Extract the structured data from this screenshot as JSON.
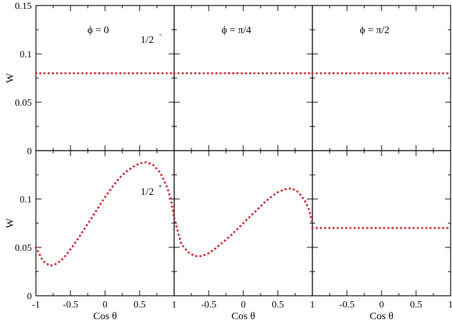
{
  "chart_data": {
    "type": "line",
    "grid": false,
    "line_color": "#e8141b",
    "line_style": "dotted",
    "xlabel": "Cos θ",
    "ylabel": "W",
    "x_ticks": [
      "-1",
      "-0.5",
      "0",
      "0.5",
      "1"
    ],
    "x_ticks_joined": [
      "1",
      "-0.5",
      "0",
      "0.5",
      "1"
    ],
    "y_ticks_top": [
      "0",
      "0.05",
      "0.1",
      "0.15"
    ],
    "y_ticks_bottom": [
      "0",
      "0.05",
      "0.1"
    ],
    "xlim": [
      -1,
      1
    ],
    "ylim": [
      0,
      0.15
    ],
    "columns": [
      {
        "label": "ϕ = 0"
      },
      {
        "label": "ϕ = π/4"
      },
      {
        "label": "ϕ = π/2"
      }
    ],
    "row_annotations": [
      {
        "row": 0,
        "col": 0,
        "base": "1/2",
        "sup": "-"
      },
      {
        "row": 1,
        "col": 0,
        "base": "1/2",
        "sup": "+"
      }
    ],
    "panels": [
      {
        "row": 0,
        "col": 0,
        "x": [
          -1,
          1
        ],
        "y": [
          0.08,
          0.08
        ]
      },
      {
        "row": 0,
        "col": 1,
        "x": [
          -1,
          1
        ],
        "y": [
          0.08,
          0.08
        ]
      },
      {
        "row": 0,
        "col": 2,
        "x": [
          -1,
          1
        ],
        "y": [
          0.08,
          0.08
        ]
      },
      {
        "row": 1,
        "col": 0,
        "x": [
          -1,
          -0.9,
          -0.8,
          -0.7,
          -0.6,
          -0.5,
          -0.4,
          -0.3,
          -0.2,
          -0.1,
          0,
          0.1,
          0.2,
          0.3,
          0.4,
          0.5,
          0.6,
          0.7,
          0.8,
          0.9,
          0.95,
          1
        ],
        "y": [
          0.05,
          0.036,
          0.031,
          0.033,
          0.039,
          0.048,
          0.058,
          0.069,
          0.08,
          0.091,
          0.102,
          0.112,
          0.121,
          0.128,
          0.133,
          0.137,
          0.138,
          0.135,
          0.127,
          0.112,
          0.1,
          0.08
        ]
      },
      {
        "row": 1,
        "col": 1,
        "x": [
          -1,
          -0.9,
          -0.8,
          -0.7,
          -0.6,
          -0.5,
          -0.4,
          -0.3,
          -0.2,
          -0.1,
          0,
          0.1,
          0.2,
          0.3,
          0.4,
          0.5,
          0.6,
          0.7,
          0.8,
          0.9,
          0.95,
          1
        ],
        "y": [
          0.08,
          0.054,
          0.045,
          0.041,
          0.041,
          0.044,
          0.049,
          0.055,
          0.061,
          0.068,
          0.075,
          0.082,
          0.089,
          0.096,
          0.102,
          0.107,
          0.11,
          0.111,
          0.107,
          0.097,
          0.089,
          0.075
        ]
      },
      {
        "row": 1,
        "col": 2,
        "x": [
          -1,
          1
        ],
        "y": [
          0.07,
          0.07
        ]
      }
    ]
  }
}
